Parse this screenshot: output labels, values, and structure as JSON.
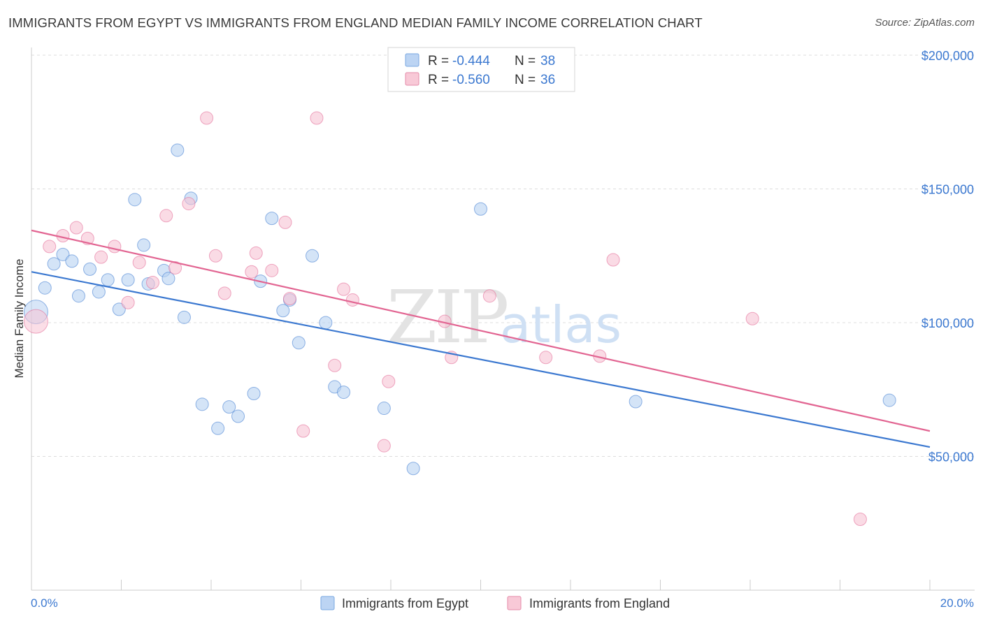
{
  "title": "IMMIGRANTS FROM EGYPT VS IMMIGRANTS FROM ENGLAND MEDIAN FAMILY INCOME CORRELATION CHART",
  "source": "Source: ZipAtlas.com",
  "watermark": {
    "zip": "ZIP",
    "atlas": "atlas"
  },
  "legend": {
    "rows": [
      {
        "r_label": "R =",
        "r_value": "-0.444",
        "n_label": "N =",
        "n_value": "38",
        "color": "#a9c8ef"
      },
      {
        "r_label": "R =",
        "r_value": "-0.560",
        "n_label": "N =",
        "n_value": "36",
        "color": "#f5b8cb"
      }
    ]
  },
  "bottom_legend": [
    "Immigrants from Egypt",
    "Immigrants from England"
  ],
  "chart_data": {
    "type": "scatter",
    "title": "IMMIGRANTS FROM EGYPT VS IMMIGRANTS FROM ENGLAND MEDIAN FAMILY INCOME CORRELATION CHART",
    "xlabel": "",
    "ylabel": "Median Family Income",
    "xlim": [
      0,
      20
    ],
    "ylim": [
      0,
      200000
    ],
    "x_tick_labels": [
      "0.0%",
      "20.0%"
    ],
    "y_ticks": [
      50000,
      100000,
      150000,
      200000
    ],
    "y_tick_labels": [
      "$50,000",
      "$100,000",
      "$150,000",
      "$200,000"
    ],
    "grid": true,
    "series": [
      {
        "name": "Immigrants from Egypt",
        "color": "#3b78d0",
        "fill": "#b8d2f2",
        "trend": {
          "x": [
            0,
            20
          ],
          "y": [
            119000,
            53500
          ]
        },
        "points": [
          {
            "x": 0.1,
            "y": 104000,
            "big": true
          },
          {
            "x": 0.3,
            "y": 113000
          },
          {
            "x": 0.5,
            "y": 122000
          },
          {
            "x": 0.7,
            "y": 125500
          },
          {
            "x": 0.9,
            "y": 123000
          },
          {
            "x": 1.05,
            "y": 110000
          },
          {
            "x": 1.3,
            "y": 120000
          },
          {
            "x": 1.5,
            "y": 111500
          },
          {
            "x": 1.7,
            "y": 116000
          },
          {
            "x": 1.95,
            "y": 105000
          },
          {
            "x": 2.15,
            "y": 116000
          },
          {
            "x": 2.3,
            "y": 146000
          },
          {
            "x": 2.5,
            "y": 129000
          },
          {
            "x": 2.6,
            "y": 114500
          },
          {
            "x": 2.95,
            "y": 119500
          },
          {
            "x": 3.05,
            "y": 116500
          },
          {
            "x": 3.25,
            "y": 164500
          },
          {
            "x": 3.4,
            "y": 102000
          },
          {
            "x": 3.55,
            "y": 146500
          },
          {
            "x": 3.8,
            "y": 69500
          },
          {
            "x": 4.15,
            "y": 60500
          },
          {
            "x": 4.4,
            "y": 68500
          },
          {
            "x": 4.6,
            "y": 65000
          },
          {
            "x": 4.95,
            "y": 73500
          },
          {
            "x": 5.1,
            "y": 115500
          },
          {
            "x": 5.35,
            "y": 139000
          },
          {
            "x": 5.6,
            "y": 104500
          },
          {
            "x": 5.75,
            "y": 108500
          },
          {
            "x": 5.95,
            "y": 92500
          },
          {
            "x": 6.25,
            "y": 125000
          },
          {
            "x": 6.55,
            "y": 100000
          },
          {
            "x": 6.75,
            "y": 76000
          },
          {
            "x": 6.95,
            "y": 74000
          },
          {
            "x": 7.85,
            "y": 68000
          },
          {
            "x": 8.5,
            "y": 45500
          },
          {
            "x": 10.0,
            "y": 142500
          },
          {
            "x": 13.45,
            "y": 70500
          },
          {
            "x": 19.1,
            "y": 71000
          }
        ]
      },
      {
        "name": "Immigrants from England",
        "color": "#e26592",
        "fill": "#f7c3d3",
        "trend": {
          "x": [
            0,
            20
          ],
          "y": [
            134500,
            59500
          ]
        },
        "points": [
          {
            "x": 0.1,
            "y": 100500,
            "big": true
          },
          {
            "x": 0.4,
            "y": 128500
          },
          {
            "x": 0.7,
            "y": 132500
          },
          {
            "x": 1.0,
            "y": 135500
          },
          {
            "x": 1.25,
            "y": 131500
          },
          {
            "x": 1.55,
            "y": 124500
          },
          {
            "x": 1.85,
            "y": 128500
          },
          {
            "x": 2.15,
            "y": 107500
          },
          {
            "x": 2.4,
            "y": 122500
          },
          {
            "x": 2.7,
            "y": 115000
          },
          {
            "x": 3.0,
            "y": 140000
          },
          {
            "x": 3.2,
            "y": 120500
          },
          {
            "x": 3.5,
            "y": 144500
          },
          {
            "x": 3.9,
            "y": 176500
          },
          {
            "x": 4.1,
            "y": 125000
          },
          {
            "x": 4.3,
            "y": 111000
          },
          {
            "x": 4.9,
            "y": 119000
          },
          {
            "x": 5.0,
            "y": 126000
          },
          {
            "x": 5.35,
            "y": 119500
          },
          {
            "x": 5.65,
            "y": 137500
          },
          {
            "x": 5.75,
            "y": 109000
          },
          {
            "x": 6.05,
            "y": 59500
          },
          {
            "x": 6.35,
            "y": 176500
          },
          {
            "x": 6.75,
            "y": 84000
          },
          {
            "x": 6.95,
            "y": 112500
          },
          {
            "x": 7.15,
            "y": 108500
          },
          {
            "x": 7.85,
            "y": 54000
          },
          {
            "x": 7.95,
            "y": 78000
          },
          {
            "x": 9.2,
            "y": 100500
          },
          {
            "x": 9.35,
            "y": 87000
          },
          {
            "x": 10.2,
            "y": 110000
          },
          {
            "x": 11.45,
            "y": 87000
          },
          {
            "x": 12.65,
            "y": 87500
          },
          {
            "x": 12.95,
            "y": 123500
          },
          {
            "x": 16.05,
            "y": 101500
          },
          {
            "x": 18.45,
            "y": 26500
          }
        ]
      }
    ]
  }
}
